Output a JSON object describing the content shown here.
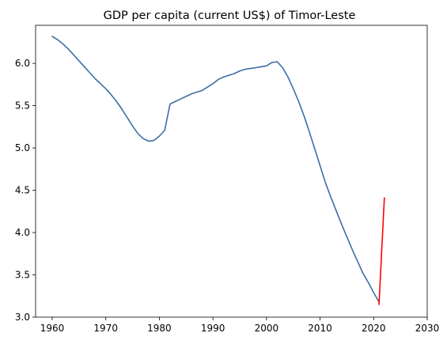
{
  "chart_data": {
    "type": "line",
    "title": "GDP per capita (current US$) of Timor-Leste",
    "xlabel": "",
    "ylabel": "",
    "xlim": [
      1956.9,
      2030.0
    ],
    "ylim": [
      3.0,
      6.45
    ],
    "xticks": [
      1960,
      1970,
      1980,
      1990,
      2000,
      2010,
      2020,
      2030
    ],
    "yticks": [
      3.0,
      3.5,
      4.0,
      4.5,
      5.0,
      5.5,
      6.0
    ],
    "grid": false,
    "legend": null,
    "series": [
      {
        "color": "#3b6ea5",
        "x": [
          1960,
          1961,
          1962,
          1963,
          1964,
          1965,
          1966,
          1967,
          1968,
          1969,
          1970,
          1971,
          1972,
          1973,
          1974,
          1975,
          1976,
          1977,
          1978,
          1979,
          1980,
          1981,
          1982,
          1983,
          1984,
          1985,
          1986,
          1987,
          1988,
          1989,
          1990,
          1991,
          1992,
          1993,
          1994,
          1995,
          1996,
          1997,
          1998,
          1999,
          2000,
          2001,
          2002,
          2003,
          2004,
          2005,
          2006,
          2007,
          2008,
          2009,
          2010,
          2011,
          2012,
          2013,
          2014,
          2015,
          2016,
          2017,
          2018,
          2019,
          2020,
          2021
        ],
        "y": [
          6.32,
          6.28,
          6.23,
          6.17,
          6.1,
          6.03,
          5.96,
          5.89,
          5.82,
          5.76,
          5.7,
          5.63,
          5.55,
          5.46,
          5.36,
          5.26,
          5.17,
          5.11,
          5.08,
          5.09,
          5.14,
          5.21,
          5.52,
          5.55,
          5.58,
          5.61,
          5.64,
          5.66,
          5.68,
          5.72,
          5.76,
          5.81,
          5.84,
          5.86,
          5.88,
          5.91,
          5.93,
          5.94,
          5.95,
          5.96,
          5.97,
          6.01,
          6.02,
          5.95,
          5.84,
          5.7,
          5.55,
          5.38,
          5.19,
          4.99,
          4.79,
          4.59,
          4.42,
          4.26,
          4.1,
          3.95,
          3.8,
          3.66,
          3.52,
          3.41,
          3.29,
          3.18
        ]
      },
      {
        "color": "#ff0000",
        "x": [
          2021,
          2022
        ],
        "y": [
          3.15,
          4.41
        ]
      }
    ]
  }
}
